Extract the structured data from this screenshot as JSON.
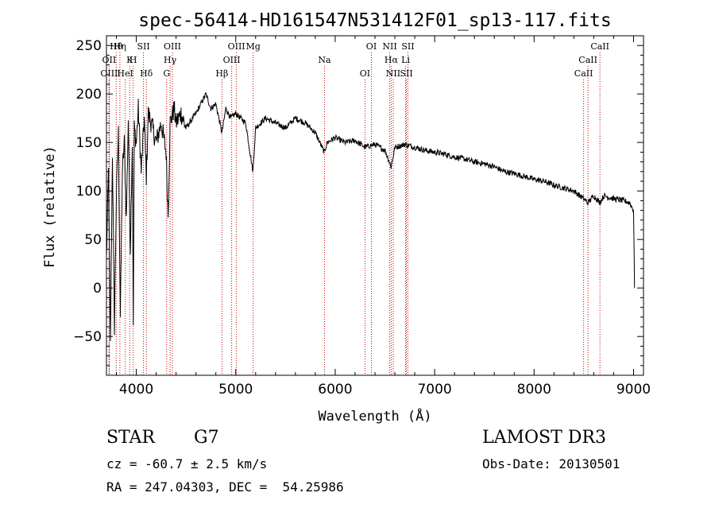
{
  "chart_data": {
    "type": "line",
    "title": "spec-56414-HD161547N531412F01_sp13-117.fits",
    "xlabel": "Wavelength (Å)",
    "ylabel": "Flux (relative)",
    "xlim": [
      3700,
      9100
    ],
    "ylim": [
      -90,
      260
    ],
    "xticks": [
      4000,
      5000,
      6000,
      7000,
      8000,
      9000
    ],
    "yticks": [
      -50,
      0,
      50,
      100,
      150,
      200,
      250
    ],
    "spectrum_nodes": [
      [
        3700,
        30
      ],
      [
        3720,
        120
      ],
      [
        3740,
        -60
      ],
      [
        3760,
        140
      ],
      [
        3780,
        -40
      ],
      [
        3800,
        95
      ],
      [
        3820,
        160
      ],
      [
        3840,
        -30
      ],
      [
        3860,
        120
      ],
      [
        3880,
        150
      ],
      [
        3900,
        70
      ],
      [
        3920,
        175
      ],
      [
        3940,
        40
      ],
      [
        3960,
        150
      ],
      [
        3970,
        -45
      ],
      [
        3980,
        165
      ],
      [
        4000,
        150
      ],
      [
        4020,
        185
      ],
      [
        4050,
        120
      ],
      [
        4080,
        175
      ],
      [
        4101,
        115
      ],
      [
        4120,
        180
      ],
      [
        4150,
        170
      ],
      [
        4200,
        150
      ],
      [
        4250,
        170
      ],
      [
        4300,
        140
      ],
      [
        4320,
        75
      ],
      [
        4340,
        170
      ],
      [
        4380,
        185
      ],
      [
        4400,
        170
      ],
      [
        4450,
        180
      ],
      [
        4500,
        165
      ],
      [
        4600,
        180
      ],
      [
        4700,
        200
      ],
      [
        4750,
        185
      ],
      [
        4800,
        190
      ],
      [
        4861,
        160
      ],
      [
        4900,
        185
      ],
      [
        4950,
        175
      ],
      [
        5000,
        180
      ],
      [
        5100,
        170
      ],
      [
        5172,
        120
      ],
      [
        5200,
        165
      ],
      [
        5300,
        175
      ],
      [
        5400,
        170
      ],
      [
        5500,
        165
      ],
      [
        5600,
        175
      ],
      [
        5700,
        170
      ],
      [
        5800,
        160
      ],
      [
        5890,
        140
      ],
      [
        5920,
        150
      ],
      [
        6000,
        155
      ],
      [
        6100,
        150
      ],
      [
        6200,
        152
      ],
      [
        6300,
        145
      ],
      [
        6400,
        148
      ],
      [
        6500,
        142
      ],
      [
        6563,
        125
      ],
      [
        6600,
        145
      ],
      [
        6700,
        148
      ],
      [
        6800,
        145
      ],
      [
        6900,
        142
      ],
      [
        7000,
        140
      ],
      [
        7100,
        138
      ],
      [
        7200,
        135
      ],
      [
        7300,
        133
      ],
      [
        7400,
        130
      ],
      [
        7500,
        128
      ],
      [
        7600,
        125
      ],
      [
        7700,
        120
      ],
      [
        7800,
        118
      ],
      [
        7900,
        115
      ],
      [
        8000,
        112
      ],
      [
        8100,
        110
      ],
      [
        8200,
        106
      ],
      [
        8300,
        103
      ],
      [
        8400,
        100
      ],
      [
        8498,
        92
      ],
      [
        8542,
        88
      ],
      [
        8600,
        95
      ],
      [
        8662,
        88
      ],
      [
        8700,
        95
      ],
      [
        8800,
        92
      ],
      [
        8900,
        90
      ],
      [
        8960,
        88
      ],
      [
        9000,
        80
      ],
      [
        9010,
        0
      ]
    ],
    "spectral_lines": [
      {
        "name": "Hθ",
        "wavelength": 3798
      },
      {
        "name": "K",
        "wavelength": 3934
      },
      {
        "name": "Hδ",
        "wavelength": 4101
      },
      {
        "name": "OIII",
        "wavelength": 4363
      },
      {
        "name": "OII",
        "wavelength": 3727
      },
      {
        "name": "HeI",
        "wavelength": 3889
      },
      {
        "name": "SII",
        "wavelength": 4072
      },
      {
        "name": "Hγ",
        "wavelength": 4340
      },
      {
        "name": "OIII",
        "wavelength": 3727
      },
      {
        "name": "Hη",
        "wavelength": 3835
      },
      {
        "name": "H",
        "wavelength": 3969
      },
      {
        "name": "G",
        "wavelength": 4305
      },
      {
        "name": "OIII",
        "wavelength": 5007
      },
      {
        "name": "OIII",
        "wavelength": 4959
      },
      {
        "name": "Hβ",
        "wavelength": 4861
      },
      {
        "name": "Mg",
        "wavelength": 5175
      },
      {
        "name": "Na",
        "wavelength": 5893
      },
      {
        "name": "OI",
        "wavelength": 6300
      },
      {
        "name": "OI",
        "wavelength": 6364
      },
      {
        "name": "Hα",
        "wavelength": 6563
      },
      {
        "name": "SII",
        "wavelength": 6716
      },
      {
        "name": "NII",
        "wavelength": 6548
      },
      {
        "name": "Li",
        "wavelength": 6708
      },
      {
        "name": "NII",
        "wavelength": 6583
      },
      {
        "name": "SII",
        "wavelength": 6731
      },
      {
        "name": "CaII",
        "wavelength": 8542
      },
      {
        "name": "CaII",
        "wavelength": 8498
      },
      {
        "name": "CaII",
        "wavelength": 8662
      }
    ],
    "line_color": "#000000",
    "marker_color": "#cc0000"
  },
  "info": {
    "object_class": "STAR",
    "subclass": "G7",
    "survey": "LAMOST DR3",
    "redshift_text": "cz = -60.7 ± 2.5 km/s",
    "obs_date": "Obs-Date: 20130501",
    "coords": "RA = 247.04303, DEC =  54.25986"
  }
}
